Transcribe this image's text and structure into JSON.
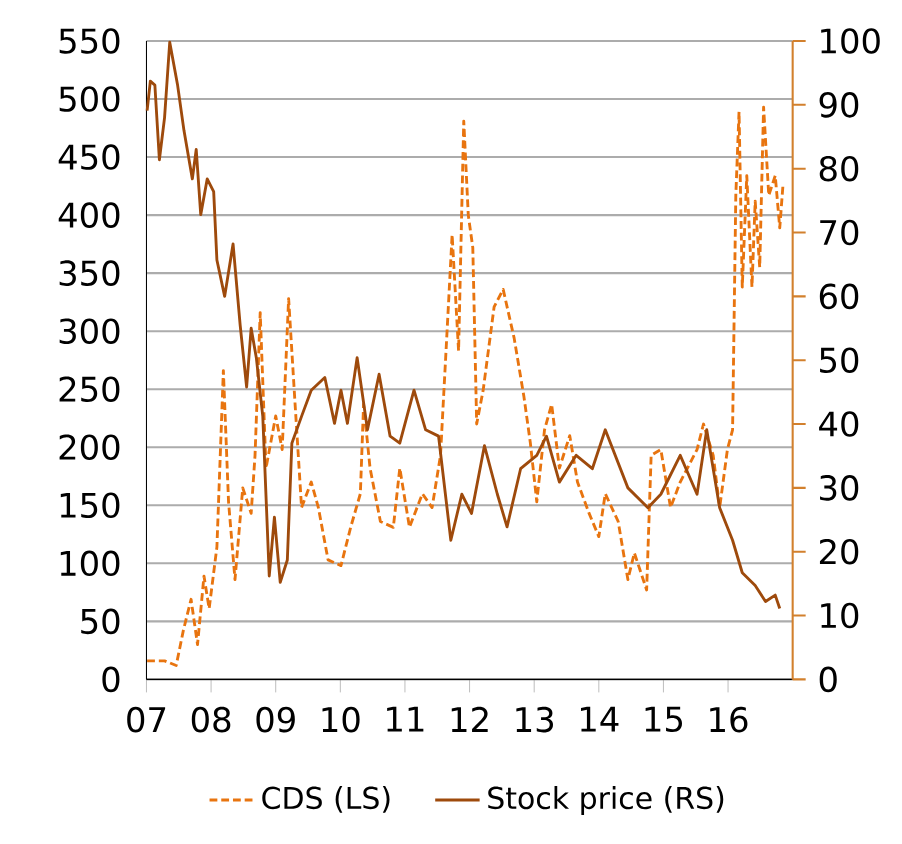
{
  "chart_data": {
    "type": "line",
    "xlim": [
      2007,
      2017
    ],
    "ylim": [
      0,
      550
    ],
    "y2lim": [
      0,
      100
    ],
    "xticks": [
      {
        "value": 2007,
        "label": "07"
      },
      {
        "value": 2008,
        "label": "08"
      },
      {
        "value": 2009,
        "label": "09"
      },
      {
        "value": 2010,
        "label": "10"
      },
      {
        "value": 2011,
        "label": "11"
      },
      {
        "value": 2012,
        "label": "12"
      },
      {
        "value": 2013,
        "label": "13"
      },
      {
        "value": 2014,
        "label": "14"
      },
      {
        "value": 2015,
        "label": "15"
      },
      {
        "value": 2016,
        "label": "16"
      }
    ],
    "yticks": [
      0,
      50,
      100,
      150,
      200,
      250,
      300,
      350,
      400,
      450,
      500,
      550
    ],
    "y2ticks": [
      0,
      10,
      20,
      30,
      40,
      50,
      60,
      70,
      80,
      90,
      100
    ],
    "grid": "y",
    "legend": "bottom",
    "series": [
      {
        "name": "CDS (LS)",
        "color": "#e8740f",
        "line_style": "dashed",
        "axis": "y",
        "x": [
          2007.01,
          2007.28,
          2007.46,
          2007.57,
          2007.69,
          2007.79,
          2007.89,
          2007.97,
          2008.09,
          2008.19,
          2008.27,
          2008.37,
          2008.49,
          2008.62,
          2008.68,
          2008.76,
          2008.85,
          2009.0,
          2009.1,
          2009.2,
          2009.3,
          2009.4,
          2009.55,
          2009.66,
          2009.81,
          2010.01,
          2010.16,
          2010.31,
          2010.36,
          2010.46,
          2010.62,
          2010.82,
          2010.92,
          2011.07,
          2011.27,
          2011.42,
          2011.55,
          2011.63,
          2011.73,
          2011.83,
          2011.91,
          2011.98,
          2012.05,
          2012.11,
          2012.21,
          2012.38,
          2012.52,
          2012.69,
          2012.84,
          2012.94,
          2013.04,
          2013.16,
          2013.27,
          2013.39,
          2013.55,
          2013.67,
          2013.85,
          2014.0,
          2014.1,
          2014.3,
          2014.45,
          2014.55,
          2014.74,
          2014.81,
          2014.96,
          2015.11,
          2015.26,
          2015.52,
          2015.62,
          2015.77,
          2015.87,
          2015.99,
          2016.07,
          2016.12,
          2016.17,
          2016.22,
          2016.29,
          2016.37,
          2016.42,
          2016.49,
          2016.55,
          2016.63,
          2016.73,
          2016.8,
          2016.85
        ],
        "values": [
          16,
          16,
          12,
          42,
          69,
          30,
          89,
          61,
          114,
          266,
          153,
          86,
          165,
          143,
          193,
          316,
          182,
          227,
          198,
          328,
          237,
          148,
          170,
          148,
          103,
          98,
          131,
          160,
          237,
          182,
          136,
          131,
          182,
          131,
          160,
          148,
          193,
          277,
          383,
          283,
          481,
          400,
          372,
          220,
          249,
          321,
          336,
          294,
          244,
          204,
          153,
          215,
          237,
          182,
          210,
          170,
          143,
          123,
          160,
          136,
          86,
          109,
          77,
          193,
          198,
          148,
          170,
          198,
          220,
          193,
          148,
          198,
          215,
          417,
          489,
          338,
          434,
          338,
          412,
          355,
          493,
          417,
          434,
          389,
          426
        ]
      },
      {
        "name": "Stock price (RS)",
        "color": "#9e4a0c",
        "line_style": "solid",
        "axis": "y2",
        "x": [
          2007.01,
          2007.06,
          2007.13,
          2007.2,
          2007.28,
          2007.36,
          2007.48,
          2007.58,
          2007.71,
          2007.77,
          2007.84,
          2007.94,
          2008.04,
          2008.09,
          2008.21,
          2008.34,
          2008.45,
          2008.55,
          2008.62,
          2008.7,
          2008.8,
          2008.9,
          2008.98,
          2009.07,
          2009.18,
          2009.25,
          2009.4,
          2009.55,
          2009.76,
          2009.91,
          2010.01,
          2010.11,
          2010.26,
          2010.42,
          2010.6,
          2010.77,
          2010.92,
          2011.14,
          2011.32,
          2011.52,
          2011.71,
          2011.88,
          2012.03,
          2012.23,
          2012.43,
          2012.58,
          2012.79,
          2013.04,
          2013.19,
          2013.39,
          2013.65,
          2013.9,
          2014.1,
          2014.45,
          2014.76,
          2014.96,
          2015.26,
          2015.52,
          2015.67,
          2015.87,
          2016.07,
          2016.22,
          2016.42,
          2016.58,
          2016.73,
          2016.8
        ],
        "values": [
          89.1,
          93.7,
          93.1,
          81.4,
          88,
          99.8,
          93.2,
          86,
          78.4,
          83,
          72.8,
          78.4,
          76.4,
          65.7,
          60,
          68.2,
          55.5,
          45.8,
          55,
          50.4,
          41.2,
          16.2,
          25.4,
          15.2,
          18.7,
          37,
          41.2,
          45.3,
          47.3,
          40.1,
          45.3,
          40.1,
          50.4,
          39.1,
          47.8,
          38.1,
          37,
          45.3,
          39.1,
          38.1,
          21.8,
          29,
          26,
          36.6,
          29,
          23.9,
          33,
          35.1,
          38.1,
          30.9,
          35.1,
          33,
          39.1,
          30,
          26.9,
          29,
          35.1,
          29,
          39.1,
          26.9,
          21.8,
          16.7,
          14.7,
          12.2,
          13.2,
          11.1
        ]
      }
    ]
  }
}
